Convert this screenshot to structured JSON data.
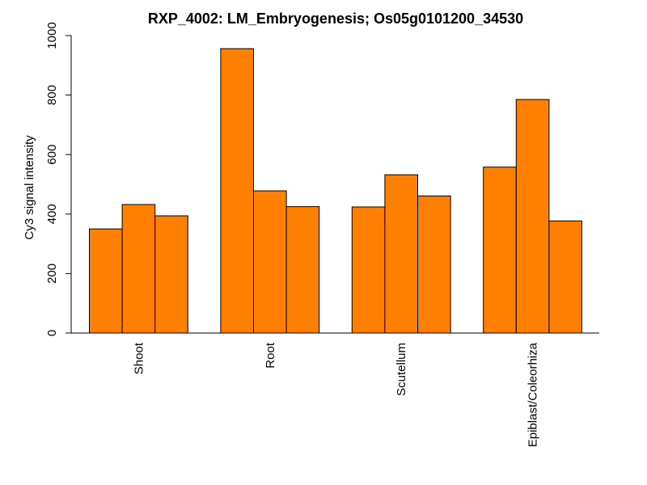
{
  "chart_data": {
    "type": "bar",
    "title": "RXP_4002: LM_Embryogenesis; Os05g0101200_34530",
    "xlabel": "",
    "ylabel": "Cy3 signal intensity",
    "ylim": [
      0,
      1000
    ],
    "yticks": [
      "0",
      "200",
      "400",
      "600",
      "800",
      "1000"
    ],
    "categories": [
      "Shoot",
      "Root",
      "Scutellum",
      "Epiblast/Coleorhiza"
    ],
    "values": [
      [
        350,
        432,
        394
      ],
      [
        956,
        478,
        425
      ],
      [
        424,
        532,
        461
      ],
      [
        558,
        785,
        377
      ]
    ],
    "bar_color": "#FF7F00",
    "bar_stroke": "#000000",
    "grid": false,
    "legend": "none"
  }
}
